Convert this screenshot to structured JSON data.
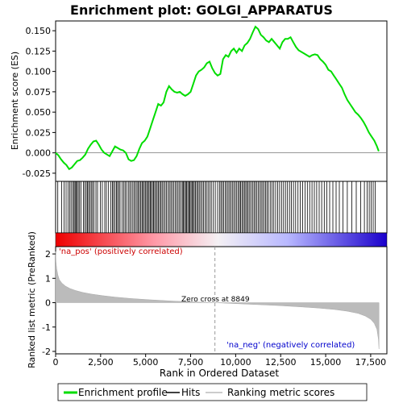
{
  "chart_data": {
    "type": "line",
    "title": "Enrichment plot: GOLGI_APPARATUS",
    "panels": {
      "enrichment": {
        "ylabel": "Enrichment score (ES)",
        "ylim": [
          -0.035,
          0.162
        ],
        "yticks": [
          -0.025,
          0.0,
          0.025,
          0.05,
          0.075,
          0.1,
          0.125,
          0.15
        ],
        "ytick_labels": [
          "-0.025",
          "0.000",
          "0.025",
          "0.050",
          "0.075",
          "0.100",
          "0.125",
          "0.150"
        ],
        "series": [
          {
            "name": "Enrichment profile",
            "color": "#00dd00",
            "x": [
              0,
              150,
              300,
              450,
              600,
              750,
              900,
              1050,
              1200,
              1350,
              1500,
              1650,
              1800,
              1950,
              2100,
              2250,
              2400,
              2550,
              2700,
              2850,
              3000,
              3150,
              3300,
              3450,
              3600,
              3750,
              3900,
              4050,
              4200,
              4350,
              4500,
              4650,
              4800,
              4950,
              5100,
              5250,
              5400,
              5550,
              5700,
              5850,
              6000,
              6150,
              6300,
              6450,
              6600,
              6750,
              6900,
              7050,
              7200,
              7350,
              7500,
              7650,
              7800,
              7950,
              8100,
              8250,
              8400,
              8550,
              8700,
              8850,
              9000,
              9150,
              9300,
              9450,
              9600,
              9750,
              9900,
              10050,
              10200,
              10350,
              10500,
              10650,
              10800,
              10950,
              11100,
              11250,
              11400,
              11550,
              11700,
              11850,
              12000,
              12150,
              12300,
              12450,
              12600,
              12750,
              12900,
              13050,
              13200,
              13350,
              13500,
              13650,
              13800,
              13950,
              14100,
              14250,
              14400,
              14550,
              14700,
              14850,
              15000,
              15150,
              15300,
              15450,
              15600,
              15750,
              15900,
              16050,
              16200,
              16350,
              16500,
              16650,
              16800,
              16950,
              17100,
              17250,
              17400,
              17550,
              17700,
              17850,
              17950
            ],
            "values": [
              0.0,
              -0.003,
              -0.008,
              -0.012,
              -0.015,
              -0.02,
              -0.018,
              -0.014,
              -0.01,
              -0.009,
              -0.006,
              -0.002,
              0.005,
              0.01,
              0.014,
              0.015,
              0.01,
              0.004,
              0.0,
              -0.002,
              -0.004,
              0.002,
              0.008,
              0.006,
              0.004,
              0.003,
              0.0,
              -0.008,
              -0.01,
              -0.009,
              -0.004,
              0.005,
              0.012,
              0.015,
              0.02,
              0.03,
              0.04,
              0.05,
              0.06,
              0.058,
              0.062,
              0.075,
              0.082,
              0.078,
              0.075,
              0.074,
              0.075,
              0.072,
              0.07,
              0.072,
              0.075,
              0.085,
              0.095,
              0.1,
              0.102,
              0.105,
              0.11,
              0.112,
              0.104,
              0.098,
              0.095,
              0.097,
              0.115,
              0.12,
              0.118,
              0.125,
              0.128,
              0.123,
              0.128,
              0.125,
              0.132,
              0.135,
              0.14,
              0.148,
              0.155,
              0.152,
              0.145,
              0.142,
              0.138,
              0.136,
              0.14,
              0.136,
              0.132,
              0.128,
              0.136,
              0.14,
              0.14,
              0.142,
              0.136,
              0.13,
              0.126,
              0.124,
              0.122,
              0.12,
              0.118,
              0.12,
              0.121,
              0.12,
              0.115,
              0.112,
              0.108,
              0.102,
              0.1,
              0.095,
              0.09,
              0.085,
              0.08,
              0.072,
              0.065,
              0.06,
              0.055,
              0.05,
              0.047,
              0.043,
              0.038,
              0.032,
              0.025,
              0.02,
              0.015,
              0.008,
              0.002
            ]
          }
        ]
      },
      "hits": {
        "label": "Hits",
        "positions": [
          120,
          330,
          470,
          580,
          690,
          780,
          860,
          950,
          1020,
          1080,
          1130,
          1190,
          1260,
          1330,
          1410,
          1540,
          1620,
          1700,
          1770,
          1830,
          1900,
          1980,
          2050,
          2130,
          2240,
          2330,
          2480,
          2590,
          2730,
          2820,
          2940,
          3070,
          3150,
          3220,
          3300,
          3380,
          3440,
          3510,
          3580,
          3690,
          3780,
          3860,
          3940,
          4040,
          4120,
          4200,
          4290,
          4370,
          4440,
          4520,
          4590,
          4660,
          4730,
          4800,
          4860,
          4930,
          5000,
          5060,
          5120,
          5190,
          5250,
          5310,
          5380,
          5440,
          5500,
          5570,
          5640,
          5710,
          5780,
          5850,
          5920,
          6000,
          6080,
          6160,
          6240,
          6320,
          6400,
          6480,
          6560,
          6640,
          6720,
          6800,
          6880,
          6960,
          7040,
          7100,
          7160,
          7220,
          7280,
          7340,
          7400,
          7460,
          7520,
          7580,
          7640,
          7700,
          7770,
          7840,
          7910,
          7980,
          8060,
          8140,
          8220,
          8300,
          8380,
          8470,
          8560,
          8650,
          8760,
          8870,
          9000,
          9100,
          9180,
          9260,
          9340,
          9420,
          9500,
          9580,
          9660,
          9740,
          9820,
          9900,
          9980,
          10060,
          10140,
          10210,
          10280,
          10350,
          10420,
          10490,
          10560,
          10630,
          10700,
          10780,
          10860,
          10940,
          11020,
          11100,
          11180,
          11260,
          11340,
          11420,
          11500,
          11580,
          11660,
          11740,
          11820,
          11920,
          12020,
          12120,
          12220,
          12330,
          12440,
          12550,
          12660,
          12770,
          12880,
          12990,
          13100,
          13210,
          13330,
          13460,
          13590,
          13720,
          13850,
          13980,
          14110,
          14240,
          14370,
          14500,
          14640,
          14780,
          14920,
          15060,
          15220,
          15400,
          15580,
          15760,
          15960,
          16200,
          16450,
          16700,
          16950,
          17150,
          17300,
          17420,
          17530,
          17640,
          17750
        ]
      },
      "ranked_metric": {
        "xlabel": "Rank in Ordered Dataset",
        "ylabel": "Ranked list metric (PreRanked)",
        "ylim": [
          -2.1,
          2.3
        ],
        "yticks": [
          -2,
          -1,
          0,
          1,
          2
        ],
        "ytick_labels": [
          "-2",
          "-1",
          "0",
          "1",
          "2"
        ],
        "xlim": [
          0,
          18400
        ],
        "xticks": [
          0,
          2500,
          5000,
          7500,
          10000,
          12500,
          15000,
          17500
        ],
        "xtick_labels": [
          "0",
          "2,500",
          "5,000",
          "7,500",
          "10,000",
          "12,500",
          "15,000",
          "17,500"
        ],
        "zero_cross": 8849,
        "zero_cross_label": "Zero cross at 8849",
        "pos_label": "'na_pos' (positively correlated)",
        "neg_label": "'na_neg' (negatively correlated)",
        "n_genes": 17960,
        "metric_curve": {
          "x": [
            0,
            20,
            60,
            120,
            200,
            350,
            550,
            800,
            1100,
            1500,
            2000,
            2600,
            3300,
            4200,
            5200,
            6400,
            7600,
            8849,
            10000,
            11200,
            12400,
            13600,
            14600,
            15500,
            16200,
            16800,
            17200,
            17500,
            17700,
            17850,
            17930,
            17960
          ],
          "values": [
            2.1,
            1.7,
            1.4,
            1.15,
            0.95,
            0.8,
            0.68,
            0.58,
            0.5,
            0.42,
            0.35,
            0.29,
            0.23,
            0.17,
            0.12,
            0.07,
            0.03,
            0.0,
            -0.04,
            -0.08,
            -0.12,
            -0.17,
            -0.22,
            -0.28,
            -0.35,
            -0.44,
            -0.55,
            -0.68,
            -0.85,
            -1.1,
            -1.5,
            -1.9
          ]
        }
      }
    },
    "legend": {
      "placement": "bottom",
      "items": [
        {
          "name": "Enrichment profile",
          "color": "#00dd00"
        },
        {
          "name": "Hits",
          "color": "#000000"
        },
        {
          "name": "Ranking metric scores",
          "color": "#bbbbbb"
        }
      ]
    }
  }
}
